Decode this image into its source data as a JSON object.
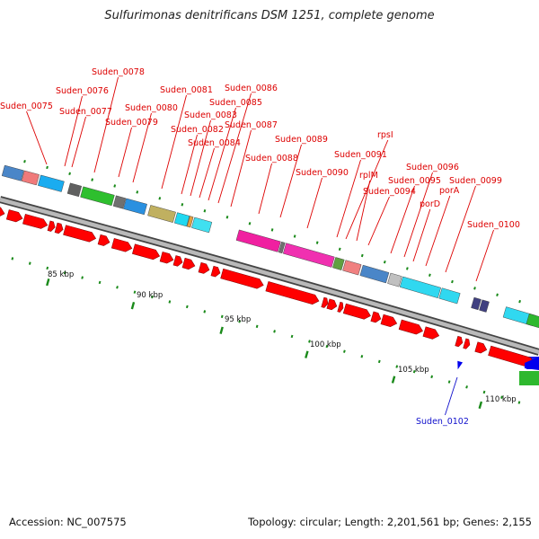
{
  "title": "Sulfurimonas denitrificans DSM 1251, complete genome",
  "footer": {
    "accession": "Accession: NC_007575",
    "summary": "Topology: circular; Length: 2,201,561 bp; Genes: 2,155"
  },
  "colors": {
    "forward_cds": "#ff0000",
    "reverse_cds": "#0000ee",
    "label_forward": "#dd0000",
    "label_reverse": "#1010cc",
    "backbone": "#808080",
    "tick": "#1a8a1a"
  },
  "scale_labels": [
    "85 kbp",
    "90 kbp",
    "95 kbp",
    "100 kbp",
    "105 kbp",
    "110 kbp"
  ],
  "gene_labels": [
    "Suden_0075",
    "Suden_0076",
    "Suden_0077",
    "Suden_0078",
    "Suden_0079",
    "Suden_0080",
    "Suden_0081",
    "Suden_0082",
    "Suden_0083",
    "Suden_0084",
    "Suden_0085",
    "Suden_0086",
    "Suden_0087",
    "Suden_0088",
    "Suden_0089",
    "Suden_0090",
    "Suden_0091",
    "rpsI",
    "rplM",
    "Suden_0094",
    "Suden_0095",
    "Suden_0096",
    "porD",
    "porA",
    "Suden_0099",
    "Suden_0100",
    "Suden_0102"
  ]
}
